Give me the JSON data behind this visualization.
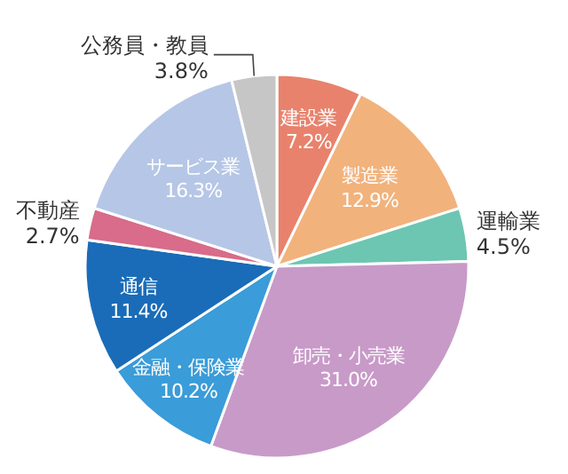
{
  "chart_data": {
    "type": "pie",
    "categories": [
      "建設業",
      "製造業",
      "運輸業",
      "卸売・小売業",
      "金融・保険業",
      "通信",
      "不動産",
      "サービス業",
      "公務員・教員"
    ],
    "values": [
      7.2,
      12.9,
      4.5,
      31.0,
      10.2,
      11.4,
      2.7,
      16.3,
      3.8
    ],
    "value_labels": [
      "7.2%",
      "12.9%",
      "4.5%",
      "31.0%",
      "10.2%",
      "11.4%",
      "2.7%",
      "16.3%",
      "3.8%"
    ],
    "colors": [
      "#e8826c",
      "#f2b27c",
      "#6cc6b2",
      "#c89ac8",
      "#3a9cd8",
      "#1a6cb8",
      "#d86c8a",
      "#b6c6e6",
      "#c6c6c6"
    ]
  }
}
